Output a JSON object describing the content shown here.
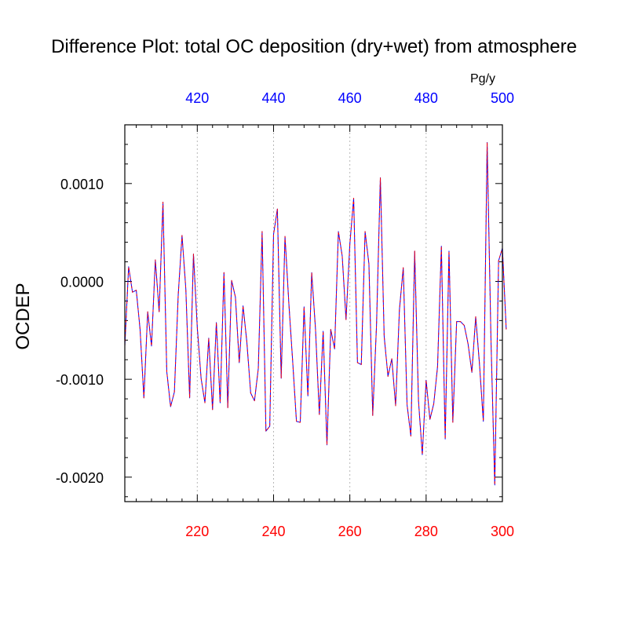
{
  "chart_data": {
    "type": "line",
    "title": "Difference Plot: total OC deposition (dry+wet) from atmosphere",
    "ylabel": "OCDEP",
    "top_axis_unit": "Pg/y",
    "xlim": [
      201,
      300
    ],
    "ylim": [
      -0.00225,
      0.0016
    ],
    "x_ticks": [
      220,
      240,
      260,
      280,
      300
    ],
    "x_tick_labels": [
      "220",
      "240",
      "260",
      "280",
      "300"
    ],
    "top_ticks": [
      220,
      240,
      260,
      280,
      300
    ],
    "top_tick_labels": [
      "420",
      "440",
      "460",
      "480",
      "500"
    ],
    "y_ticks": [
      0.001,
      0.0,
      -0.001,
      -0.002
    ],
    "y_tick_labels": [
      "0.0010",
      "0.0000",
      "-0.0010",
      "-0.0020"
    ],
    "grid": "vertical dotted at labeled x ticks",
    "series": [
      {
        "name": "Difference",
        "color": "#ff0000",
        "overlay_color": "#0000ff",
        "x_start": 201,
        "values": [
          -0.00066,
          0.00015,
          -0.00011,
          -9e-05,
          -0.00049,
          -0.00119,
          -0.00031,
          -0.00066,
          0.00022,
          -0.00031,
          0.00081,
          -0.00092,
          -0.00128,
          -0.00113,
          -0.00014,
          0.00047,
          -8e-05,
          -0.00119,
          0.00028,
          -0.00047,
          -0.00099,
          -0.00124,
          -0.00058,
          -0.00131,
          -0.00042,
          -0.00124,
          9e-05,
          -0.00129,
          1e-05,
          -0.00016,
          -0.00083,
          -0.00025,
          -0.00062,
          -0.00114,
          -0.00122,
          -0.00089,
          0.00051,
          -0.00153,
          -0.00148,
          0.00048,
          0.00074,
          -0.00099,
          0.00046,
          -0.00022,
          -0.00081,
          -0.00143,
          -0.00144,
          -0.00026,
          -0.00117,
          9e-05,
          -0.00049,
          -0.00136,
          -0.00051,
          -0.00167,
          -0.00049,
          -0.00069,
          0.00051,
          0.00026,
          -0.00039,
          0.00038,
          0.00085,
          -0.00083,
          -0.00085,
          0.00051,
          0.00018,
          -0.00137,
          -0.00044,
          0.00106,
          -0.00056,
          -0.00097,
          -0.00079,
          -0.00127,
          -0.00029,
          0.00014,
          -0.00126,
          -0.00158,
          0.00031,
          -0.00122,
          -0.00177,
          -0.00101,
          -0.00141,
          -0.00125,
          -0.00087,
          0.00036,
          -0.00161,
          0.00031,
          -0.00144,
          -0.00041,
          -0.00041,
          -0.00045,
          -0.00064,
          -0.00093,
          -0.00036,
          -0.00085,
          -0.00143,
          0.00142,
          -0.00059,
          -0.00208,
          0.00021,
          0.00034,
          -0.00049
        ]
      }
    ]
  }
}
